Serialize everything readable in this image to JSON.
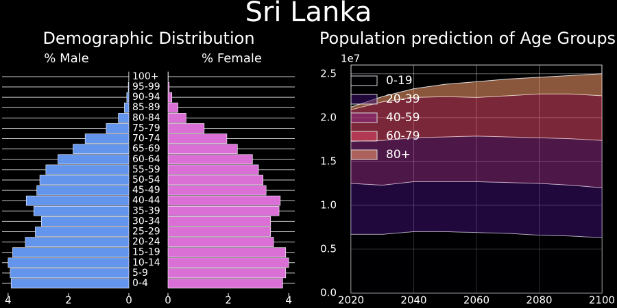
{
  "title": "Sri Lanka",
  "chart_data": [
    {
      "type": "pyramid",
      "title": "Demographic Distribution",
      "categories": [
        "0-4",
        "5-9",
        "10-14",
        "15-19",
        "20-24",
        "25-29",
        "30-34",
        "35-39",
        "40-44",
        "45-49",
        "50-54",
        "55-59",
        "60-64",
        "65-69",
        "70-74",
        "75-79",
        "80-84",
        "85-89",
        "90-94",
        "95-99",
        "100+"
      ],
      "series": [
        {
          "name": "% Male",
          "color": "#6495ed",
          "values": [
            3.9,
            3.93,
            4.0,
            3.85,
            3.43,
            3.1,
            2.9,
            3.15,
            3.4,
            3.05,
            2.95,
            2.75,
            2.35,
            1.85,
            1.45,
            0.75,
            0.35,
            0.15,
            0.07,
            0.02,
            0.005
          ]
        },
        {
          "name": "% Female",
          "color": "#da70d6",
          "values": [
            3.8,
            3.9,
            4.0,
            3.9,
            3.5,
            3.4,
            3.4,
            3.68,
            3.72,
            3.25,
            3.15,
            3.0,
            2.8,
            2.3,
            1.95,
            1.2,
            0.6,
            0.33,
            0.13,
            0.04,
            0.01
          ]
        }
      ],
      "xlim": [
        0,
        4.2
      ],
      "xticks": [
        0,
        2,
        4
      ],
      "grid": true
    },
    {
      "type": "area",
      "stacked": true,
      "title": "Population prediction of Age Groups",
      "x": [
        2020,
        2030,
        2040,
        2050,
        2060,
        2070,
        2080,
        2090,
        2100
      ],
      "series": [
        {
          "name": "0-19",
          "color": "#000004",
          "values": [
            0.67,
            0.67,
            0.7,
            0.7,
            0.69,
            0.68,
            0.66,
            0.65,
            0.63
          ]
        },
        {
          "name": "20-39",
          "color": "#3b0f70",
          "values": [
            0.58,
            0.56,
            0.57,
            0.57,
            0.58,
            0.58,
            0.59,
            0.58,
            0.57
          ]
        },
        {
          "name": "40-59",
          "color": "#8c2981",
          "values": [
            0.48,
            0.51,
            0.5,
            0.51,
            0.52,
            0.52,
            0.52,
            0.53,
            0.54
          ]
        },
        {
          "name": "60-79",
          "color": "#de4968",
          "values": [
            0.36,
            0.44,
            0.46,
            0.46,
            0.44,
            0.47,
            0.5,
            0.51,
            0.51
          ]
        },
        {
          "name": "80+",
          "color": "#fe9f6d",
          "values": [
            0.03,
            0.06,
            0.1,
            0.14,
            0.18,
            0.19,
            0.19,
            0.21,
            0.25
          ]
        }
      ],
      "xlim": [
        2020,
        2100
      ],
      "xticks": [
        2020,
        2040,
        2060,
        2080,
        2100
      ],
      "ylim": [
        0,
        2.6
      ],
      "yticks": [
        {
          "value": 0,
          "label": "0.0"
        },
        0.5,
        {
          "value": 1,
          "label": "1.0"
        },
        1.5,
        {
          "value": 2,
          "label": "2.0"
        },
        2.5
      ],
      "y_offset_label": "1e7",
      "grid": true,
      "legend": "upper left"
    }
  ]
}
